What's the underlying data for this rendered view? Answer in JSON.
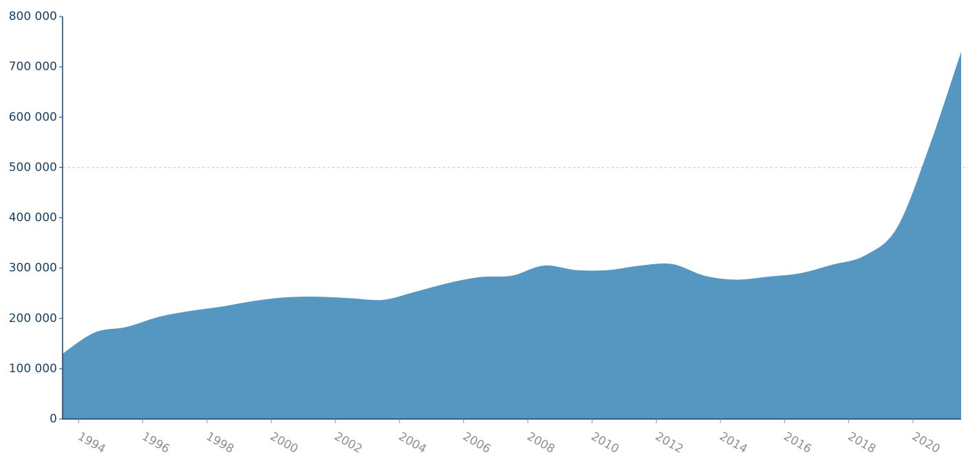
{
  "chart_data": {
    "type": "area",
    "color": "#5697c1",
    "x": [
      1993.5,
      1994.5,
      1995.5,
      1996.5,
      1997.5,
      1998.5,
      1999.5,
      2000.5,
      2001.5,
      2002.5,
      2003.5,
      2004.5,
      2005.5,
      2006.5,
      2007.5,
      2008.5,
      2009.5,
      2010.5,
      2011.5,
      2012.5,
      2013.5,
      2014.5,
      2015.5,
      2016.5,
      2017.5,
      2018.5,
      2019.5,
      2020.5,
      2021.5
    ],
    "values": [
      130000,
      172000,
      183000,
      203000,
      215000,
      224000,
      235000,
      242000,
      243000,
      240000,
      237000,
      253000,
      270000,
      282000,
      285000,
      305000,
      296000,
      296000,
      305000,
      308000,
      285000,
      277000,
      283000,
      290000,
      307000,
      325000,
      380000,
      540000,
      730000
    ],
    "xlim": [
      1993.5,
      2021.5
    ],
    "xticks": [
      1994,
      1996,
      1998,
      2000,
      2002,
      2004,
      2006,
      2008,
      2010,
      2012,
      2014,
      2016,
      2018,
      2020
    ],
    "ylim": [
      0,
      800000
    ],
    "yticks": [
      0,
      {
        "value": 100000,
        "label": "100 000"
      },
      {
        "value": 200000,
        "label": "200 000"
      },
      {
        "value": 300000,
        "label": "300 000"
      },
      {
        "value": 400000,
        "label": "400 000"
      },
      {
        "value": 500000,
        "label": "500 000"
      },
      {
        "value": 600000,
        "label": "600 000"
      },
      {
        "value": 700000,
        "label": "700 000"
      },
      {
        "value": 800000,
        "label": "800 000"
      }
    ],
    "gridlines": [
      500000
    ]
  }
}
